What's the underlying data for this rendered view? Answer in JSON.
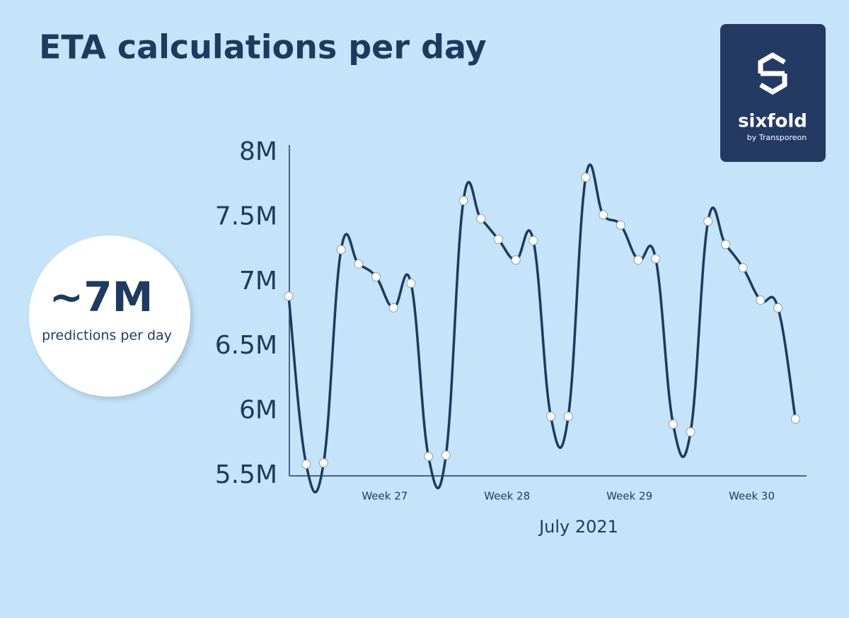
{
  "chart_data": {
    "type": "line",
    "title": "ETA calculations per day",
    "x_label": "July 2021",
    "categories": [
      null,
      null,
      null,
      null,
      null,
      "Week 27",
      null,
      null,
      null,
      null,
      null,
      null,
      "Week 28",
      null,
      null,
      null,
      null,
      null,
      null,
      "Week 29",
      null,
      null,
      null,
      null,
      null,
      null,
      "Week 30",
      null,
      null,
      null
    ],
    "series": [
      {
        "color": "#1f3a5e",
        "values": [
          6.89,
          5.59,
          5.6,
          7.25,
          7.14,
          7.04,
          6.8,
          6.99,
          5.65,
          5.66,
          7.63,
          7.49,
          7.33,
          7.17,
          7.32,
          5.96,
          5.96,
          7.81,
          7.52,
          7.44,
          7.17,
          7.18,
          5.9,
          5.84,
          7.47,
          7.29,
          7.11,
          6.86,
          6.8,
          5.94
        ]
      }
    ],
    "ylim": [
      5.5,
      8
    ],
    "yticks": [
      {
        "value": 5.5,
        "label": "5.5M"
      },
      {
        "value": 6,
        "label": "6M"
      },
      {
        "value": 6.5,
        "label": "6.5M"
      },
      {
        "value": 7,
        "label": "7M"
      },
      {
        "value": 7.5,
        "label": "7.5M"
      },
      {
        "value": 8,
        "label": "8M"
      }
    ],
    "grid": false,
    "callout": {
      "value": "~7M",
      "text": "predictions per day"
    }
  },
  "logo": {
    "name": "sixfold",
    "tagline": "by Transporeon"
  }
}
